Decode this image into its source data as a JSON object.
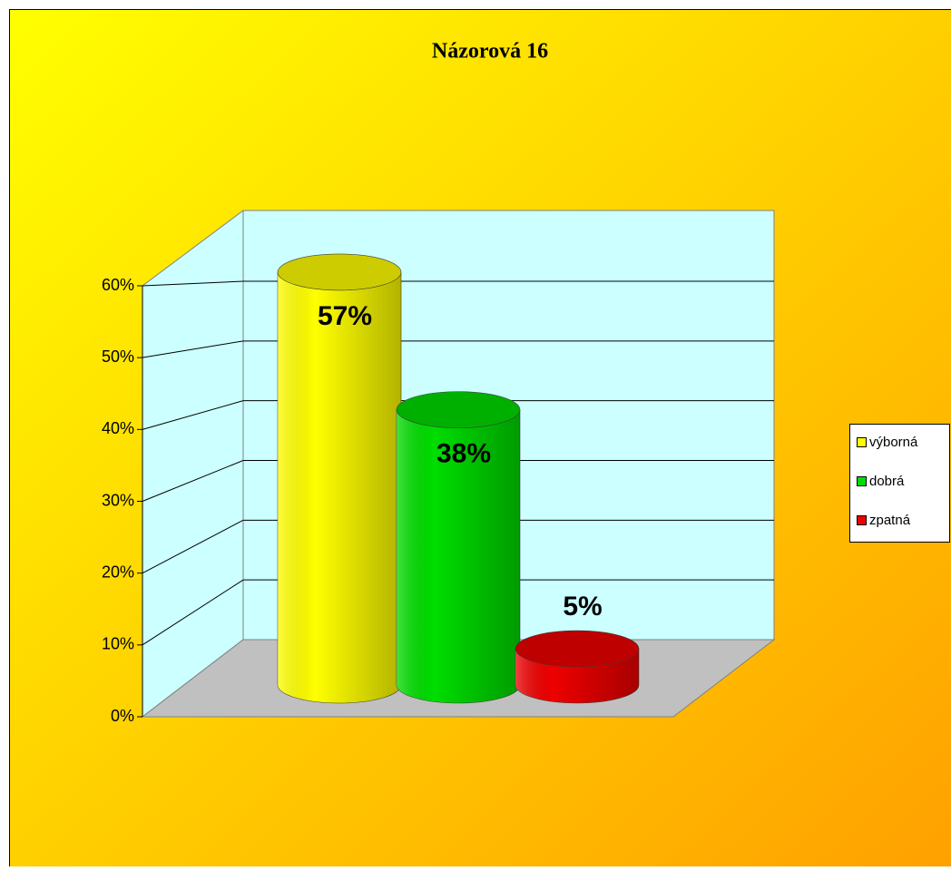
{
  "chart_data": {
    "type": "bar3d",
    "title": "Názorová 16",
    "series": [
      {
        "name": "výborná",
        "color": "#ffff00",
        "values": [
          57
        ],
        "value_labels": [
          "57%"
        ]
      },
      {
        "name": "dobrá",
        "color": "#00dd00",
        "values": [
          38
        ],
        "value_labels": [
          "38%"
        ]
      },
      {
        "name": "zpatná",
        "color": "#ee0000",
        "values": [
          5
        ],
        "value_labels": [
          "5%"
        ]
      }
    ],
    "ylim": [
      0,
      60
    ],
    "yticks": [
      {
        "value": 0,
        "label": "0%"
      },
      {
        "value": 10,
        "label": "10%"
      },
      {
        "value": 20,
        "label": "20%"
      },
      {
        "value": 30,
        "label": "30%"
      },
      {
        "value": 40,
        "label": "40%"
      },
      {
        "value": 50,
        "label": "50%"
      },
      {
        "value": 60,
        "label": "60%"
      }
    ],
    "grid": true,
    "legend": "right"
  }
}
